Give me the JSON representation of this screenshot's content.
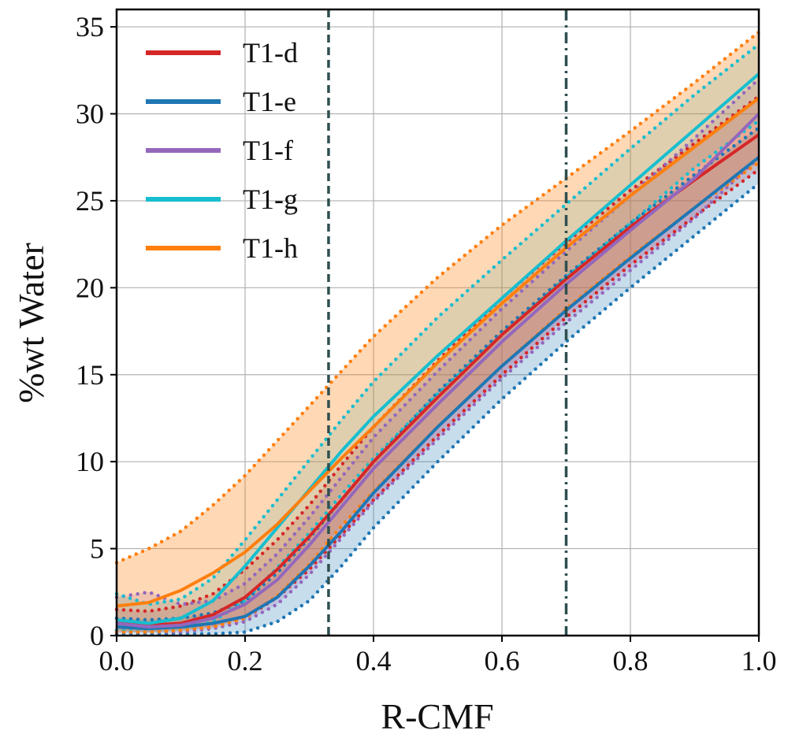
{
  "chart_data": {
    "type": "line",
    "xlabel": "R-CMF",
    "ylabel": "%wt Water",
    "xlim": [
      0,
      1
    ],
    "ylim": [
      0,
      36
    ],
    "xticks": [
      "0.0",
      "0.2",
      "0.4",
      "0.6",
      "0.8",
      "1.0"
    ],
    "yticks": [
      "0",
      "5",
      "10",
      "15",
      "20",
      "25",
      "30",
      "35"
    ],
    "grid": true,
    "legend_position": "top-left",
    "vertical_lines": [
      {
        "x": 0.33,
        "style": "dashed",
        "color": "#2f4f4f"
      },
      {
        "x": 0.7,
        "style": "dashdot",
        "color": "#2f4f4f"
      }
    ],
    "series": [
      {
        "name": "T1-d",
        "color": "#d62728",
        "band_opacity": 0.2,
        "x": [
          0,
          0.05,
          0.1,
          0.15,
          0.2,
          0.25,
          0.3,
          0.35,
          0.4,
          0.5,
          0.6,
          0.7,
          0.8,
          0.9,
          1.0
        ],
        "mid": [
          0.8,
          0.6,
          0.7,
          1.2,
          2.2,
          3.8,
          5.7,
          7.8,
          10.0,
          13.7,
          17.3,
          20.5,
          23.5,
          26.2,
          28.8
        ],
        "low": [
          0.3,
          0.2,
          0.3,
          0.5,
          1.0,
          2.2,
          3.8,
          5.8,
          7.8,
          11.5,
          15.0,
          18.3,
          21.3,
          24.1,
          26.8
        ],
        "high": [
          1.5,
          1.4,
          1.7,
          2.4,
          3.8,
          5.5,
          7.5,
          9.8,
          12.0,
          15.8,
          19.4,
          22.6,
          25.6,
          28.3,
          31.0
        ]
      },
      {
        "name": "T1-e",
        "color": "#1f77b4",
        "band_opacity": 0.25,
        "x": [
          0,
          0.05,
          0.1,
          0.15,
          0.2,
          0.25,
          0.3,
          0.35,
          0.4,
          0.5,
          0.6,
          0.7,
          0.8,
          0.9,
          1.0
        ],
        "mid": [
          0.5,
          0.4,
          0.5,
          0.7,
          1.1,
          2.2,
          4.0,
          6.0,
          8.2,
          12.0,
          15.5,
          18.7,
          21.7,
          24.6,
          27.5
        ],
        "low": [
          0.1,
          0.1,
          0.1,
          0.1,
          0.2,
          0.8,
          2.0,
          4.0,
          6.2,
          10.0,
          13.6,
          16.9,
          20.0,
          23.0,
          26.0
        ],
        "high": [
          1.0,
          0.9,
          1.0,
          1.3,
          2.0,
          3.6,
          5.6,
          7.8,
          10.0,
          14.0,
          17.5,
          20.7,
          23.7,
          26.5,
          29.2
        ]
      },
      {
        "name": "T1-f",
        "color": "#9467bd",
        "band_opacity": 0.2,
        "x": [
          0,
          0.05,
          0.1,
          0.15,
          0.2,
          0.25,
          0.3,
          0.35,
          0.4,
          0.5,
          0.6,
          0.7,
          0.8,
          0.9,
          1.0
        ],
        "mid": [
          0.7,
          0.5,
          0.6,
          1.0,
          1.8,
          3.2,
          5.2,
          7.4,
          9.6,
          13.3,
          16.9,
          20.2,
          23.3,
          26.3,
          30.0
        ],
        "low": [
          0.2,
          0.2,
          0.2,
          0.4,
          0.8,
          1.8,
          3.5,
          5.6,
          7.7,
          11.3,
          14.8,
          18.0,
          21.0,
          24.0,
          27.5
        ],
        "high": [
          2.2,
          2.5,
          1.8,
          2.0,
          3.0,
          4.7,
          6.8,
          9.1,
          11.4,
          15.2,
          18.8,
          22.1,
          25.3,
          28.6,
          32.0
        ]
      },
      {
        "name": "T1-g",
        "color": "#17becf",
        "band_opacity": 0.2,
        "x": [
          0,
          0.05,
          0.1,
          0.15,
          0.2,
          0.25,
          0.3,
          0.35,
          0.4,
          0.5,
          0.6,
          0.7,
          0.8,
          0.9,
          1.0
        ],
        "mid": [
          0.9,
          0.7,
          1.0,
          2.0,
          4.0,
          6.2,
          8.4,
          10.6,
          12.6,
          16.1,
          19.4,
          22.7,
          25.9,
          29.1,
          32.3
        ],
        "low": [
          0.3,
          0.2,
          0.3,
          0.8,
          2.0,
          3.9,
          5.9,
          8.1,
          10.2,
          13.9,
          17.3,
          20.6,
          23.7,
          26.9,
          29.6
        ],
        "high": [
          2.4,
          1.8,
          2.1,
          3.3,
          5.5,
          7.8,
          10.1,
          12.4,
          14.6,
          18.3,
          21.6,
          24.8,
          28.0,
          31.1,
          34.0
        ]
      },
      {
        "name": "T1-h",
        "color": "#ff7f0e",
        "band_opacity": 0.3,
        "x": [
          0,
          0.05,
          0.1,
          0.15,
          0.2,
          0.25,
          0.3,
          0.35,
          0.4,
          0.5,
          0.6,
          0.7,
          0.8,
          0.9,
          1.0
        ],
        "mid": [
          1.7,
          1.9,
          2.6,
          3.6,
          4.8,
          6.4,
          8.3,
          10.2,
          12.0,
          15.7,
          19.1,
          22.3,
          25.3,
          28.1,
          30.9
        ],
        "low": [
          0.2,
          0.2,
          0.3,
          0.5,
          1.0,
          2.3,
          4.1,
          6.3,
          8.3,
          12.0,
          15.5,
          18.8,
          21.8,
          24.6,
          27.2
        ],
        "high": [
          4.2,
          5.0,
          6.0,
          7.5,
          9.2,
          11.2,
          13.2,
          15.2,
          17.2,
          20.6,
          23.6,
          26.3,
          29.0,
          31.8,
          34.7
        ]
      }
    ]
  }
}
